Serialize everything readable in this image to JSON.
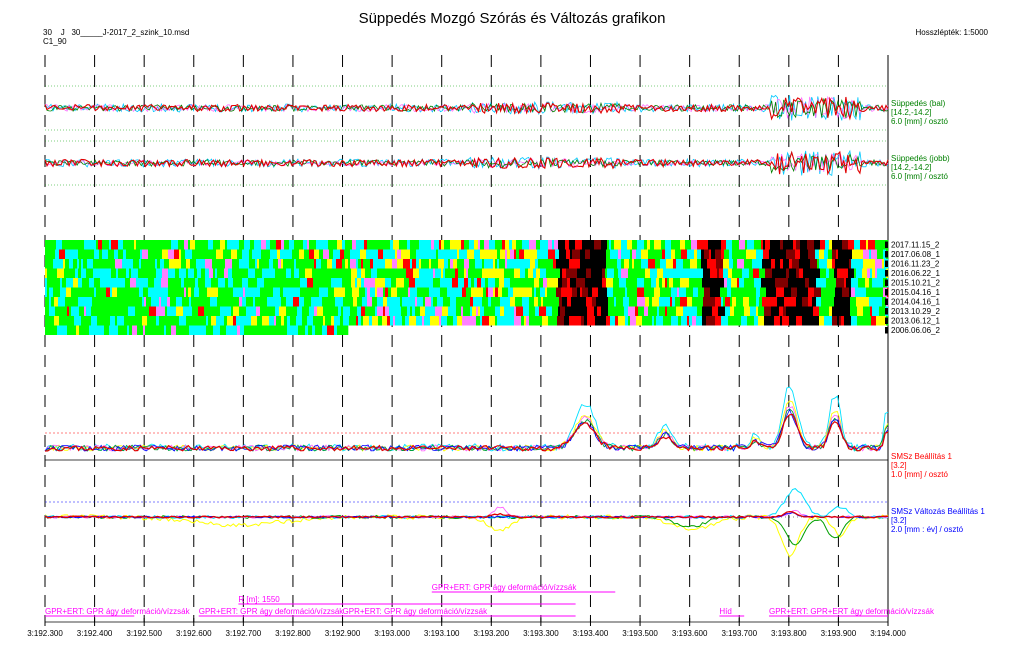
{
  "header": {
    "title": "Süppedés Mozgó Szórás és Változás grafikon",
    "line1": "30    J   30_____J-2017_2_szink_10.msd",
    "line2": "C1_90",
    "scale": "Hosszlépték: 1:5000"
  },
  "chart_data": {
    "type": "line",
    "title": "Süppedés Mozgó Szórás és Változás grafikon",
    "x_axis": {
      "ticks": [
        "3:192.300",
        "3:192.400",
        "3:192.500",
        "3:192.600",
        "3:192.700",
        "3:192.800",
        "3:192.900",
        "3:193.000",
        "3:193.100",
        "3:193.200",
        "3:193.300",
        "3:193.400",
        "3:193.500",
        "3:193.600",
        "3:193.700",
        "3:193.800",
        "3:193.900",
        "3:194.000"
      ],
      "range_m": [
        192300,
        194000
      ]
    },
    "panels": [
      {
        "name": "Süppedés (bal)",
        "range": "[14.2,-14.2]",
        "unit": "6.0 [mm] / osztó",
        "color": "#008000"
      },
      {
        "name": "Süppedés (jobb)",
        "range": "[14.2,-14.2]",
        "unit": "6.0 [mm] / osztó",
        "color": "#008000"
      },
      {
        "name": "SMSz Beállítás 1",
        "range": "[3.2]",
        "unit": "1.0 [mm] / osztó",
        "color": "#ff0000"
      },
      {
        "name": "SMSz Változás Beállítás 1",
        "range": "[3.2]",
        "unit": "2.0 [mm : év] / osztó",
        "color": "#0000ff"
      }
    ],
    "heatmap_rows": [
      "2017.11.15_2",
      "2017.06.08_1",
      "2016.11.23_2",
      "2016.06.22_1",
      "2015.10.21_2",
      "2015.04.16_1",
      "2014.04.16_1",
      "2013.10.29_2",
      "2013.06.12_1",
      "2006.06.06_2"
    ],
    "heatmap_palette": [
      "#00ff00",
      "#00ffff",
      "#ffff00",
      "#ff80ff",
      "#ff0000",
      "#800000",
      "#000000"
    ],
    "annotations": [
      {
        "text": "GPR+ERT: GPR ágy deformáció/vízzsák",
        "from": 192300,
        "to": 192480,
        "row": 3
      },
      {
        "text": "GPR+ERT: GPR ágy deformáció/vízzsák",
        "from": 192610,
        "to": 192900,
        "row": 3
      },
      {
        "text": "R [m]: 1550",
        "from": 192690,
        "to": 193370,
        "row": 2
      },
      {
        "text": "GPR+ERT: GPR ágy deformáció/vízzsák",
        "from": 192900,
        "to": 193370,
        "row": 3
      },
      {
        "text": "GPR+ERT: GPR ágy deformáció/vízzsák",
        "from": 193080,
        "to": 193450,
        "row": 1
      },
      {
        "text": "Híd",
        "from": 193660,
        "to": 193710,
        "row": 3
      },
      {
        "text": "GPR+ERT: GPR+ERT ágy deformáció/vízzsák",
        "from": 193760,
        "to": 194000,
        "row": 3
      }
    ]
  }
}
